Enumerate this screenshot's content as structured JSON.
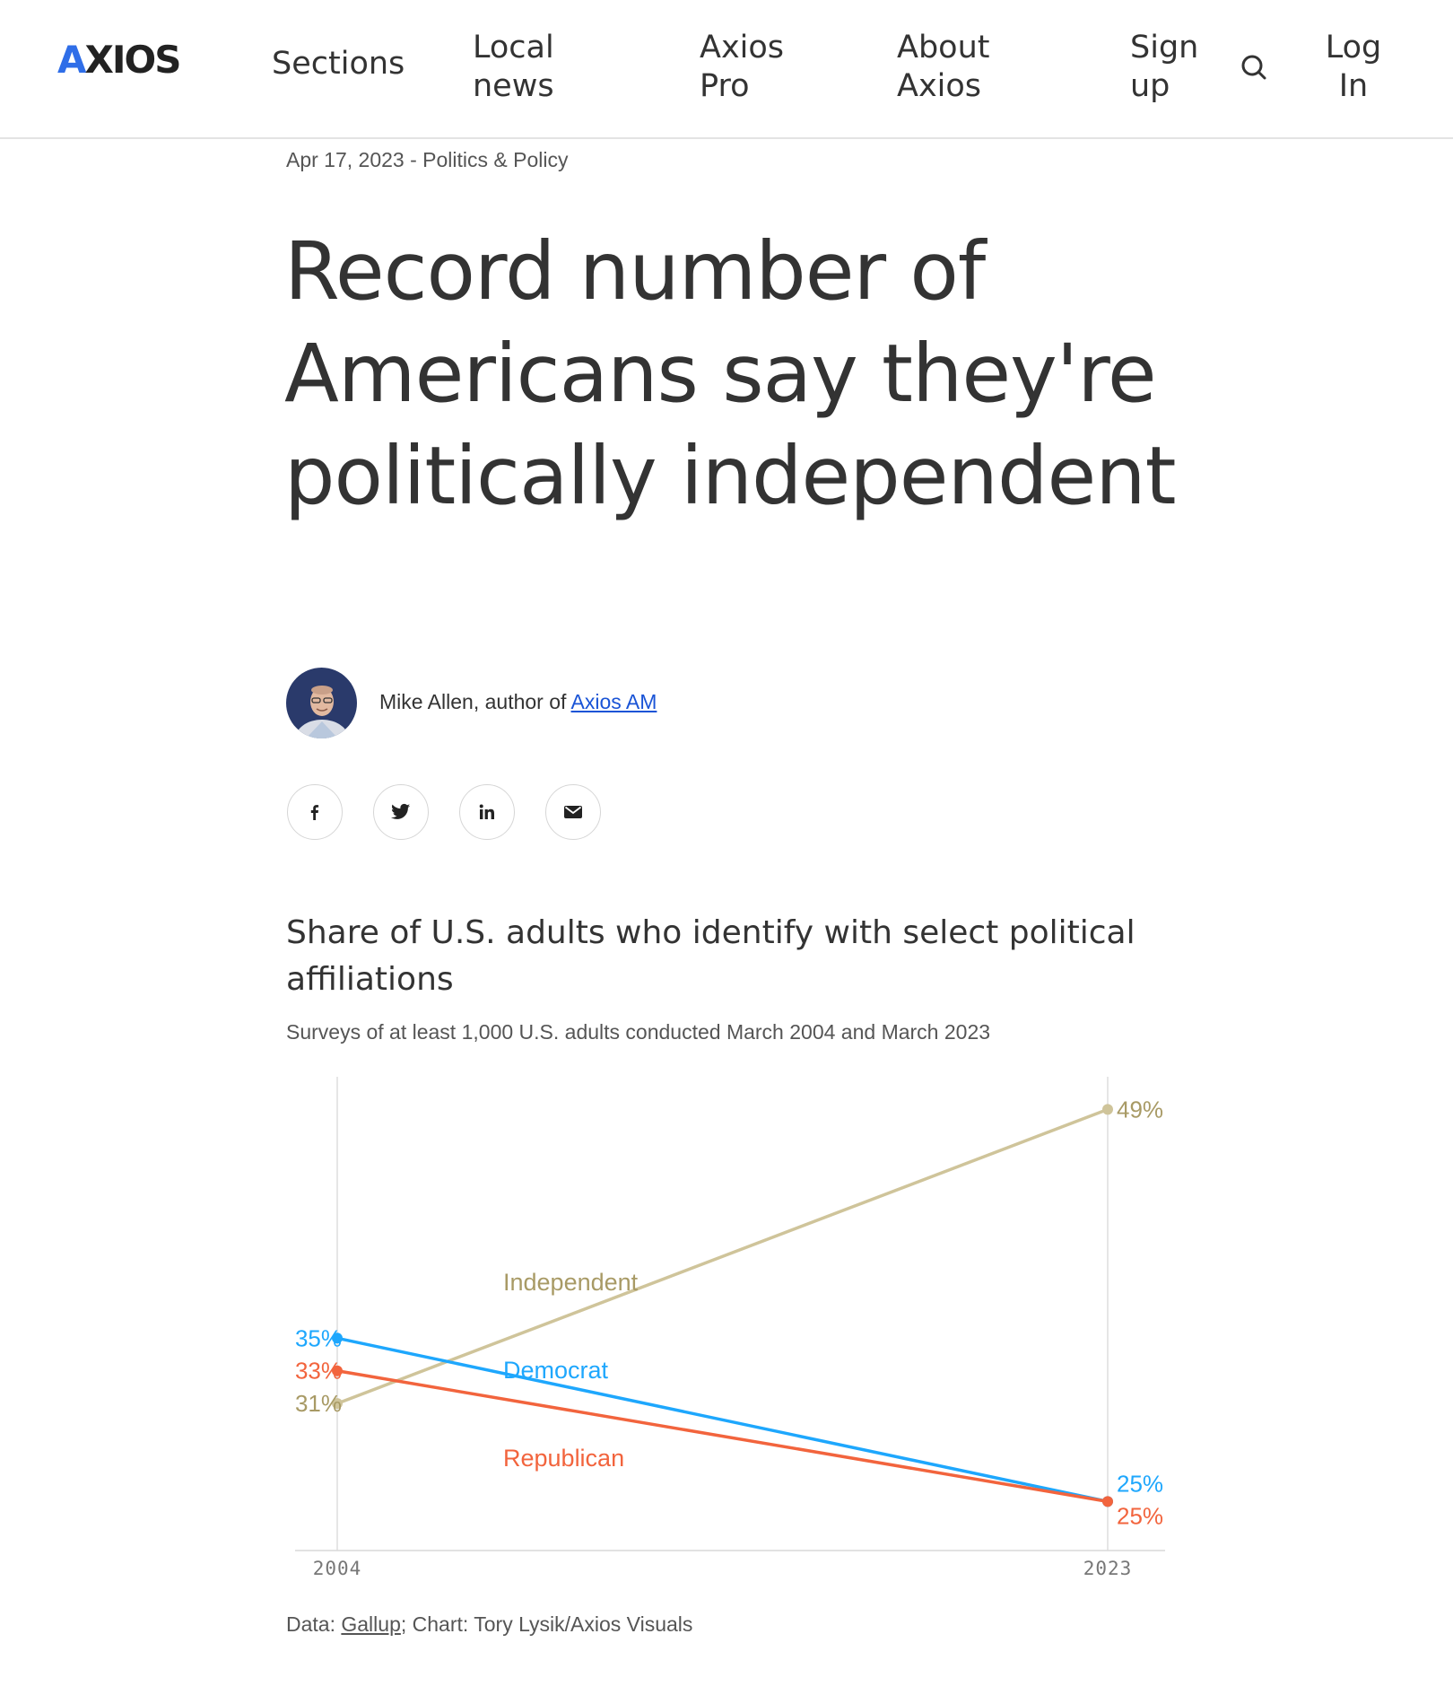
{
  "header": {
    "logo": "AXIOS",
    "nav": [
      {
        "label": "Sections"
      },
      {
        "label": "Local news"
      },
      {
        "label": "Axios Pro"
      },
      {
        "label": "About Axios"
      },
      {
        "label": "Sign up"
      },
      {
        "label": "Log In"
      }
    ],
    "search_icon": "search-icon"
  },
  "article": {
    "date": "Apr 17, 2023",
    "separator": "-",
    "category": "Politics & Policy",
    "headline": "Record number of Americans say they're politically independent",
    "byline": {
      "author": "Mike Allen, author of",
      "newsletter": "Axios AM"
    },
    "share_icons": [
      "facebook-icon",
      "twitter-icon",
      "linkedin-icon",
      "email-icon"
    ]
  },
  "chart": {
    "title": "Share of U.S. adults who identify with select political affiliations",
    "subtitle": "Surveys of at least 1,000 U.S. adults conducted March 2004 and March 2023",
    "source_prefix": "Data:",
    "source_link": "Gallup",
    "source_suffix": "; Chart: Tory Lysik/Axios Visuals"
  },
  "chart_data": {
    "type": "line",
    "x": [
      "2004",
      "2023"
    ],
    "ylim": [
      22,
      51
    ],
    "grid": "vertical lines at each x",
    "legend": "inline series labels",
    "series": [
      {
        "name": "Independent",
        "values": [
          31,
          49
        ],
        "labels": [
          "31%",
          "49%"
        ],
        "color": "#cfc49a",
        "label_color": "#a89a65"
      },
      {
        "name": "Democrat",
        "values": [
          35,
          25
        ],
        "labels": [
          "35%",
          "25%"
        ],
        "color": "#1ea7fd",
        "label_color": "#1ea7fd"
      },
      {
        "name": "Republican",
        "values": [
          33,
          25
        ],
        "labels": [
          "33%",
          "25%"
        ],
        "color": "#f2643d",
        "label_color": "#f2643d"
      }
    ]
  }
}
